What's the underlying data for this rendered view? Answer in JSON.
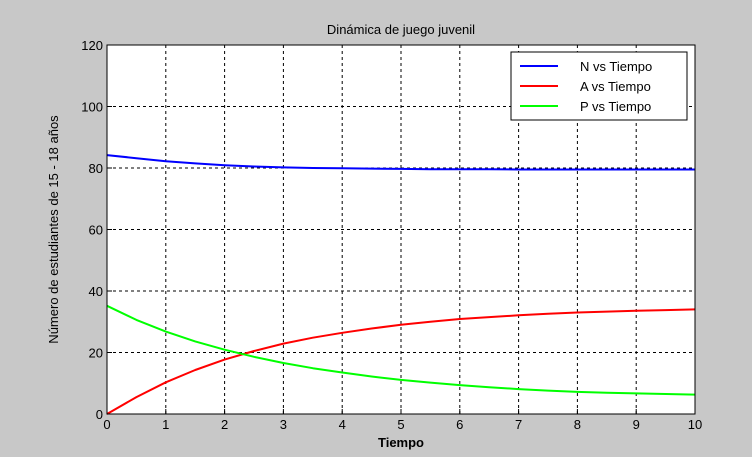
{
  "chart_data": {
    "type": "line",
    "title": "Dinámica de juego juvenil",
    "xlabel": "Tiempo",
    "ylabel": "Número de estudiantes de 15 - 18 años",
    "xlim": [
      0,
      10
    ],
    "ylim": [
      0,
      120
    ],
    "xticks": [
      0,
      1,
      2,
      3,
      4,
      5,
      6,
      7,
      8,
      9,
      10
    ],
    "yticks": [
      0,
      20,
      40,
      60,
      80,
      100,
      120
    ],
    "grid": true,
    "legend_position": "top-right",
    "x": [
      0,
      0.5,
      1,
      1.5,
      2,
      2.5,
      3,
      3.5,
      4,
      4.5,
      5,
      5.5,
      6,
      6.5,
      7,
      7.5,
      8,
      8.5,
      9,
      9.5,
      10
    ],
    "series": [
      {
        "name": "N vs Tiempo",
        "color": "#0000ff",
        "values": [
          84.2,
          83.2,
          82.2,
          81.5,
          80.9,
          80.5,
          80.2,
          80.0,
          79.9,
          79.8,
          79.7,
          79.6,
          79.6,
          79.6,
          79.5,
          79.5,
          79.5,
          79.5,
          79.5,
          79.5,
          79.5
        ]
      },
      {
        "name": "A vs Tiempo",
        "color": "#ff0000",
        "values": [
          0,
          5.5,
          10.3,
          14.3,
          17.7,
          20.5,
          22.9,
          24.8,
          26.4,
          27.8,
          29.0,
          30.0,
          30.9,
          31.5,
          32.1,
          32.6,
          33.0,
          33.3,
          33.6,
          33.8,
          34.0
        ]
      },
      {
        "name": "P vs Tiempo",
        "color": "#00ff00",
        "values": [
          35.2,
          30.6,
          26.8,
          23.6,
          20.9,
          18.6,
          16.6,
          14.9,
          13.5,
          12.2,
          11.1,
          10.2,
          9.4,
          8.7,
          8.1,
          7.6,
          7.2,
          6.9,
          6.7,
          6.5,
          6.3
        ]
      }
    ]
  }
}
